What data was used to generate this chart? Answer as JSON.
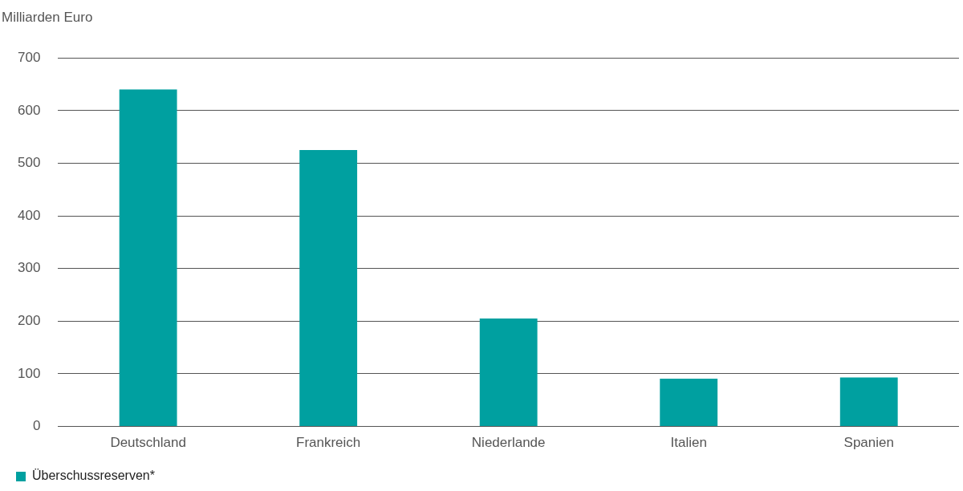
{
  "chart_data": {
    "type": "bar",
    "ylabel": "Milliarden Euro",
    "categories": [
      "Deutschland",
      "Frankreich",
      "Niederlande",
      "Italien",
      "Spanien"
    ],
    "series": [
      {
        "name": "Überschussreserven*",
        "color": "#00a0a0",
        "values": [
          640,
          525,
          205,
          91,
          93
        ]
      }
    ],
    "ylim": [
      0,
      700
    ],
    "yticks": [
      0,
      100,
      200,
      300,
      400,
      500,
      600,
      700
    ],
    "grid": "y",
    "legend": "bottom left"
  }
}
